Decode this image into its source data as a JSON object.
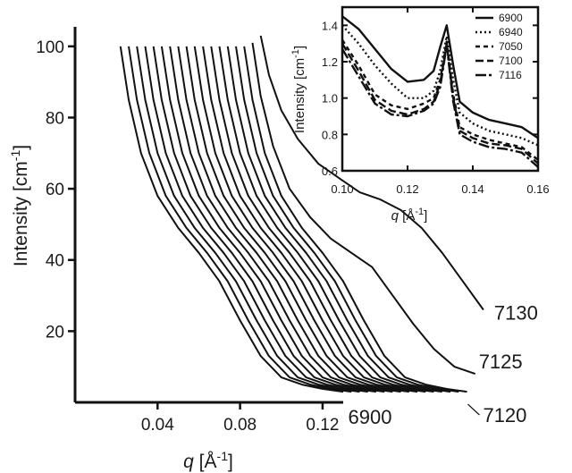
{
  "chart_data": [
    {
      "type": "line",
      "xlabel": "q [Å-1]",
      "ylabel": "Intensity [cm-1]",
      "xlim": [
        0.0,
        0.13
      ],
      "ylim": [
        0,
        108
      ],
      "xticks": [
        {
          "value": 0.04,
          "label": "0.04"
        },
        {
          "value": 0.08,
          "label": "0.08"
        },
        {
          "value": 0.12,
          "label": "0.12"
        }
      ],
      "yticks": [
        {
          "value": 20,
          "label": "20"
        },
        {
          "value": 40,
          "label": "40"
        },
        {
          "value": 60,
          "label": "60"
        },
        {
          "value": 80,
          "label": "80"
        },
        {
          "value": 100,
          "label": "100"
        }
      ],
      "annotations": [
        {
          "label": "7130",
          "series_index": 17
        },
        {
          "label": "7125",
          "series_index": 16
        },
        {
          "label": "7120",
          "series_index": 15
        },
        {
          "label": "6900",
          "series_index": 0
        }
      ],
      "series": [
        {
          "offset": 0.0,
          "x": [
            0.022,
            0.026,
            0.032,
            0.04,
            0.05,
            0.06,
            0.07,
            0.08,
            0.09,
            0.1,
            0.11,
            0.12,
            0.13
          ],
          "y": [
            100,
            85,
            70,
            58,
            49,
            42,
            34,
            23,
            13,
            7,
            5,
            3.8,
            3
          ]
        },
        {
          "offset": 0.004,
          "x": [
            0.022,
            0.026,
            0.032,
            0.04,
            0.05,
            0.06,
            0.07,
            0.08,
            0.09,
            0.1,
            0.11,
            0.12,
            0.13
          ],
          "y": [
            100,
            85,
            70,
            58,
            49,
            42,
            34,
            23,
            13,
            7,
            5,
            3.8,
            3
          ]
        },
        {
          "offset": 0.008,
          "x": [
            0.022,
            0.026,
            0.032,
            0.04,
            0.05,
            0.06,
            0.07,
            0.08,
            0.09,
            0.1,
            0.11,
            0.12,
            0.13
          ],
          "y": [
            100,
            85,
            70,
            58,
            49,
            42,
            34,
            23,
            13,
            7,
            5,
            3.8,
            3
          ]
        },
        {
          "offset": 0.012,
          "x": [
            0.022,
            0.026,
            0.032,
            0.04,
            0.05,
            0.06,
            0.07,
            0.08,
            0.09,
            0.1,
            0.11,
            0.12,
            0.13
          ],
          "y": [
            100,
            85,
            70,
            58,
            49,
            42,
            34,
            23,
            13,
            7,
            5,
            3.8,
            3
          ]
        },
        {
          "offset": 0.016,
          "x": [
            0.022,
            0.026,
            0.032,
            0.04,
            0.05,
            0.06,
            0.07,
            0.08,
            0.09,
            0.1,
            0.11,
            0.12,
            0.13
          ],
          "y": [
            100,
            85,
            70,
            58,
            49,
            42,
            34,
            23,
            13,
            7,
            5,
            3.8,
            3
          ]
        },
        {
          "offset": 0.02,
          "x": [
            0.022,
            0.026,
            0.032,
            0.04,
            0.05,
            0.06,
            0.07,
            0.08,
            0.09,
            0.1,
            0.11,
            0.12,
            0.13
          ],
          "y": [
            100,
            85,
            70,
            58,
            49,
            42,
            34,
            23,
            13,
            7,
            5,
            3.8,
            3
          ]
        },
        {
          "offset": 0.024,
          "x": [
            0.022,
            0.026,
            0.032,
            0.04,
            0.05,
            0.06,
            0.07,
            0.08,
            0.09,
            0.1,
            0.11,
            0.12,
            0.13
          ],
          "y": [
            100,
            85,
            70,
            58,
            49,
            42,
            34,
            23,
            13,
            7,
            5,
            3.8,
            3
          ]
        },
        {
          "offset": 0.028,
          "x": [
            0.022,
            0.026,
            0.032,
            0.04,
            0.05,
            0.06,
            0.07,
            0.08,
            0.09,
            0.1,
            0.11,
            0.12,
            0.13
          ],
          "y": [
            100,
            85,
            70,
            58,
            49,
            42,
            34,
            23,
            13,
            7,
            5,
            3.8,
            3
          ]
        },
        {
          "offset": 0.032,
          "x": [
            0.022,
            0.026,
            0.032,
            0.04,
            0.05,
            0.06,
            0.07,
            0.08,
            0.09,
            0.1,
            0.11,
            0.12,
            0.13
          ],
          "y": [
            100,
            85,
            70,
            58,
            49,
            42,
            34,
            23,
            13,
            7,
            5,
            3.8,
            3
          ]
        },
        {
          "offset": 0.036,
          "x": [
            0.022,
            0.026,
            0.032,
            0.04,
            0.05,
            0.06,
            0.07,
            0.08,
            0.09,
            0.1,
            0.11,
            0.12,
            0.13
          ],
          "y": [
            100,
            85,
            70,
            58,
            49,
            42,
            34,
            23,
            13,
            7,
            5,
            3.8,
            3
          ]
        },
        {
          "offset": 0.04,
          "x": [
            0.022,
            0.026,
            0.032,
            0.04,
            0.05,
            0.06,
            0.07,
            0.08,
            0.09,
            0.1,
            0.11,
            0.12,
            0.13
          ],
          "y": [
            100,
            85,
            70,
            58,
            49,
            42,
            34,
            23,
            13,
            7,
            5,
            3.8,
            3
          ]
        },
        {
          "offset": 0.044,
          "x": [
            0.022,
            0.026,
            0.032,
            0.04,
            0.05,
            0.06,
            0.07,
            0.08,
            0.09,
            0.1,
            0.11,
            0.12,
            0.13
          ],
          "y": [
            100,
            85,
            70,
            58,
            49,
            42,
            34,
            23,
            13,
            7,
            5,
            3.8,
            3
          ]
        },
        {
          "offset": 0.048,
          "x": [
            0.022,
            0.026,
            0.032,
            0.04,
            0.05,
            0.06,
            0.07,
            0.08,
            0.09,
            0.1,
            0.11,
            0.12,
            0.13
          ],
          "y": [
            100,
            85,
            70,
            58,
            49,
            42,
            34,
            23,
            13,
            7,
            5,
            3.8,
            3
          ]
        },
        {
          "offset": 0.052,
          "x": [
            0.022,
            0.026,
            0.032,
            0.04,
            0.05,
            0.06,
            0.07,
            0.08,
            0.09,
            0.1,
            0.11,
            0.12,
            0.13
          ],
          "y": [
            100,
            85,
            70,
            58,
            49,
            42,
            34,
            23,
            13,
            7,
            5,
            3.8,
            3
          ]
        },
        {
          "offset": 0.056,
          "x": [
            0.022,
            0.026,
            0.032,
            0.04,
            0.05,
            0.06,
            0.07,
            0.08,
            0.09,
            0.1,
            0.11,
            0.12,
            0.13
          ],
          "y": [
            100,
            85,
            70,
            58,
            49,
            42,
            34,
            23,
            13,
            7,
            5,
            3.8,
            3
          ]
        },
        {
          "offset": 0.06,
          "x": [
            0.022,
            0.026,
            0.032,
            0.04,
            0.05,
            0.06,
            0.07,
            0.08,
            0.09,
            0.1,
            0.11,
            0.12,
            0.13
          ],
          "y": [
            100,
            85,
            70,
            58,
            49,
            42,
            34,
            23,
            13,
            7,
            5,
            3.8,
            3
          ]
        },
        {
          "offset": 0.064,
          "x": [
            0.022,
            0.026,
            0.032,
            0.04,
            0.05,
            0.06,
            0.07,
            0.08,
            0.09,
            0.1,
            0.11,
            0.12,
            0.13
          ],
          "y": [
            101,
            86,
            72,
            60,
            52,
            46,
            42,
            38,
            30,
            22,
            15,
            10,
            8
          ]
        },
        {
          "offset": 0.068,
          "x": [
            0.022,
            0.026,
            0.032,
            0.04,
            0.05,
            0.06,
            0.07,
            0.08,
            0.09,
            0.1,
            0.11,
            0.12,
            0.13
          ],
          "y": [
            103,
            92,
            82,
            74,
            67,
            63,
            59,
            57,
            54,
            49,
            42,
            34,
            26
          ]
        }
      ]
    },
    {
      "type": "line",
      "xlabel": "q [Å-1]",
      "ylabel": "Intensity [cm-1]",
      "xlim": [
        0.1,
        0.16
      ],
      "ylim": [
        0.6,
        1.5
      ],
      "xticks": [
        {
          "value": 0.1,
          "label": "0.10"
        },
        {
          "value": 0.12,
          "label": "0.12"
        },
        {
          "value": 0.14,
          "label": "0.14"
        },
        {
          "value": 0.16,
          "label": "0.16"
        }
      ],
      "yticks": [
        {
          "value": 0.6,
          "label": "0.6"
        },
        {
          "value": 0.8,
          "label": "0.8"
        },
        {
          "value": 1.0,
          "label": "1.0"
        },
        {
          "value": 1.2,
          "label": "1.2"
        },
        {
          "value": 1.4,
          "label": "1.4"
        }
      ],
      "legend_position": "top-right",
      "series": [
        {
          "name": "6900",
          "dash": "",
          "x": [
            0.1,
            0.105,
            0.11,
            0.115,
            0.12,
            0.125,
            0.128,
            0.13,
            0.132,
            0.134,
            0.136,
            0.14,
            0.145,
            0.15,
            0.155,
            0.16
          ],
          "y": [
            1.45,
            1.38,
            1.27,
            1.16,
            1.09,
            1.1,
            1.15,
            1.28,
            1.4,
            1.18,
            0.98,
            0.92,
            0.88,
            0.86,
            0.84,
            0.78
          ]
        },
        {
          "name": "6940",
          "dash": "2,3",
          "x": [
            0.1,
            0.105,
            0.11,
            0.115,
            0.12,
            0.125,
            0.128,
            0.13,
            0.132,
            0.134,
            0.136,
            0.14,
            0.145,
            0.15,
            0.155,
            0.16
          ],
          "y": [
            1.4,
            1.3,
            1.18,
            1.08,
            1.0,
            1.0,
            1.04,
            1.15,
            1.34,
            1.1,
            0.92,
            0.86,
            0.82,
            0.8,
            0.78,
            0.74
          ]
        },
        {
          "name": "7050",
          "dash": "5,4",
          "x": [
            0.1,
            0.105,
            0.11,
            0.115,
            0.12,
            0.125,
            0.128,
            0.13,
            0.132,
            0.134,
            0.136,
            0.14,
            0.145,
            0.15,
            0.155,
            0.16
          ],
          "y": [
            1.32,
            1.18,
            1.02,
            0.96,
            0.94,
            0.97,
            1.0,
            1.1,
            1.31,
            1.02,
            0.84,
            0.8,
            0.77,
            0.75,
            0.73,
            0.66
          ]
        },
        {
          "name": "7100",
          "dash": "9,4",
          "x": [
            0.1,
            0.105,
            0.11,
            0.115,
            0.12,
            0.125,
            0.128,
            0.13,
            0.132,
            0.134,
            0.136,
            0.14,
            0.145,
            0.15,
            0.155,
            0.16
          ],
          "y": [
            1.3,
            1.15,
            0.99,
            0.93,
            0.91,
            0.94,
            0.98,
            1.08,
            1.3,
            1.0,
            0.82,
            0.78,
            0.75,
            0.74,
            0.72,
            0.64
          ]
        },
        {
          "name": "7116",
          "dash": "12,3,3,3",
          "x": [
            0.1,
            0.105,
            0.11,
            0.115,
            0.12,
            0.125,
            0.128,
            0.13,
            0.132,
            0.134,
            0.136,
            0.14,
            0.145,
            0.15,
            0.155,
            0.16
          ],
          "y": [
            1.27,
            1.12,
            0.97,
            0.91,
            0.9,
            0.93,
            0.97,
            1.06,
            1.29,
            0.98,
            0.8,
            0.76,
            0.73,
            0.72,
            0.7,
            0.62
          ]
        }
      ]
    }
  ]
}
